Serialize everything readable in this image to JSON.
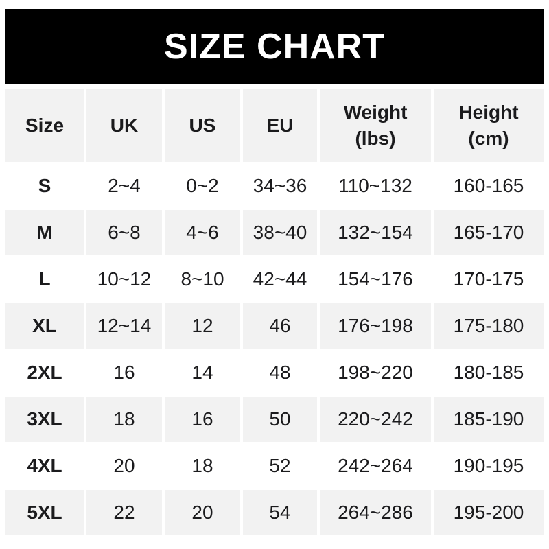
{
  "banner": {
    "title": "SIZE CHART",
    "background": "#000000",
    "text_color": "#ffffff"
  },
  "chart_data": {
    "type": "table",
    "title": "SIZE CHART",
    "columns": [
      "Size",
      "UK",
      "US",
      "EU",
      "Weight\n(lbs)",
      "Height\n(cm)"
    ],
    "rows": [
      [
        "S",
        "2~4",
        "0~2",
        "34~36",
        "110~132",
        "160-165"
      ],
      [
        "M",
        "6~8",
        "4~6",
        "38~40",
        "132~154",
        "165-170"
      ],
      [
        "L",
        "10~12",
        "8~10",
        "42~44",
        "154~176",
        "170-175"
      ],
      [
        "XL",
        "12~14",
        "12",
        "46",
        "176~198",
        "175-180"
      ],
      [
        "2XL",
        "16",
        "14",
        "48",
        "198~220",
        "180-185"
      ],
      [
        "3XL",
        "18",
        "16",
        "50",
        "220~242",
        "185-190"
      ],
      [
        "4XL",
        "20",
        "18",
        "52",
        "242~264",
        "190-195"
      ],
      [
        "5XL",
        "22",
        "20",
        "54",
        "264~286",
        "195-200"
      ]
    ],
    "layout": {
      "striped": true,
      "stripe_color": "#f2f2f2",
      "row_color": "#ffffff",
      "header_background": "#f2f2f2",
      "text_color": "#1b1b1d",
      "legend": "none",
      "grid": "off"
    }
  }
}
